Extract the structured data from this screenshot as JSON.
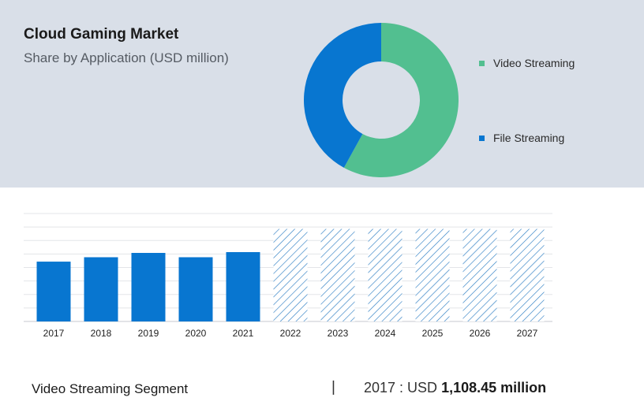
{
  "header": {
    "title": "Cloud Gaming Market",
    "subtitle": "Share by Application (USD million)"
  },
  "colors": {
    "video_streaming": "#52bf90",
    "file_streaming": "#0876d0",
    "bar": "#0876d0",
    "forecast_hatch": "#2f7fc4",
    "panel_bg": "#d9dfe8"
  },
  "chart_data": [
    {
      "type": "pie",
      "donut": true,
      "slices": [
        {
          "label": "Video Streaming",
          "value": 58
        },
        {
          "label": "File Streaming",
          "value": 42
        }
      ],
      "legend": "right"
    },
    {
      "type": "bar",
      "categories": [
        "2017",
        "2018",
        "2019",
        "2020",
        "2021",
        "2022",
        "2023",
        "2024",
        "2025",
        "2026",
        "2027"
      ],
      "values": [
        1108.45,
        1190,
        1270,
        1190,
        1285,
        1715,
        1715,
        1715,
        1715,
        1715,
        1715
      ],
      "forecast_from": "2022",
      "ylim": [
        0,
        2000
      ],
      "grid": true
    }
  ],
  "footer": {
    "segment_label": "Video Streaming Segment",
    "separator": "|",
    "year_prefix": "2017 : USD",
    "value": "1,108.45 million"
  }
}
